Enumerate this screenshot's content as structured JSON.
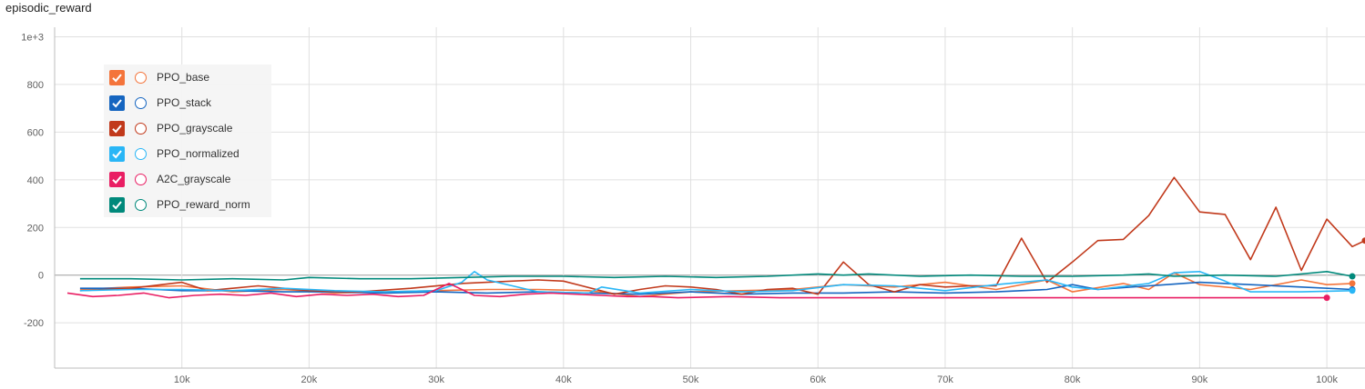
{
  "chart_data": {
    "type": "line",
    "title": "episodic_reward",
    "xlabel": "",
    "ylabel": "",
    "xlim": [
      0,
      103000
    ],
    "ylim": [
      -390,
      1040
    ],
    "x_ticks": [
      {
        "value": 10000,
        "label": "10k"
      },
      {
        "value": 20000,
        "label": "20k"
      },
      {
        "value": 30000,
        "label": "30k"
      },
      {
        "value": 40000,
        "label": "40k"
      },
      {
        "value": 50000,
        "label": "50k"
      },
      {
        "value": 60000,
        "label": "60k"
      },
      {
        "value": 70000,
        "label": "70k"
      },
      {
        "value": 80000,
        "label": "80k"
      },
      {
        "value": 90000,
        "label": "90k"
      },
      {
        "value": 100000,
        "label": "100k"
      }
    ],
    "y_ticks": [
      {
        "value": -200,
        "label": "-200"
      },
      {
        "value": 0,
        "label": "0"
      },
      {
        "value": 200,
        "label": "200"
      },
      {
        "value": 400,
        "label": "400"
      },
      {
        "value": 600,
        "label": "600"
      },
      {
        "value": 800,
        "label": "800"
      },
      {
        "value": 1000,
        "label": "1e+3"
      }
    ],
    "grid": true,
    "legend_position": "top-left",
    "series": [
      {
        "name": "PPO_base",
        "color": "#f4743b",
        "x": [
          2000,
          6000,
          10000,
          14000,
          18000,
          22000,
          26000,
          30000,
          34000,
          38000,
          42000,
          46000,
          50000,
          54000,
          58000,
          62000,
          66000,
          70000,
          74000,
          78000,
          80000,
          84000,
          86000,
          88000,
          90000,
          94000,
          98000,
          100000,
          102000
        ],
        "y": [
          -60,
          -50,
          -45,
          -70,
          -60,
          -75,
          -70,
          -65,
          -60,
          -60,
          -65,
          -90,
          -70,
          -65,
          -60,
          -40,
          -50,
          -30,
          -60,
          -20,
          -70,
          -35,
          -60,
          10,
          -40,
          -60,
          -20,
          -40,
          -35
        ]
      },
      {
        "name": "PPO_stack",
        "color": "#1565c0",
        "x": [
          2000,
          6000,
          10000,
          14000,
          18000,
          22000,
          26000,
          30000,
          34000,
          38000,
          42000,
          46000,
          50000,
          54000,
          58000,
          62000,
          66000,
          70000,
          74000,
          78000,
          80000,
          82000,
          86000,
          90000,
          94000,
          98000,
          102000
        ],
        "y": [
          -55,
          -55,
          -65,
          -65,
          -70,
          -70,
          -75,
          -70,
          -75,
          -70,
          -75,
          -80,
          -70,
          -80,
          -75,
          -75,
          -70,
          -75,
          -70,
          -60,
          -40,
          -60,
          -45,
          -30,
          -40,
          -50,
          -60
        ]
      },
      {
        "name": "PPO_grayscale",
        "color": "#c1391b",
        "x": [
          2000,
          6000,
          10000,
          12000,
          16000,
          20000,
          24000,
          28000,
          32000,
          34000,
          38000,
          40000,
          44000,
          46000,
          48000,
          50000,
          52000,
          54000,
          56000,
          58000,
          60000,
          62000,
          64000,
          66000,
          68000,
          70000,
          72000,
          74000,
          76000,
          78000,
          80000,
          82000,
          84000,
          86000,
          88000,
          90000,
          92000,
          94000,
          96000,
          98000,
          100000,
          102000,
          103000
        ],
        "y": [
          -65,
          -55,
          -30,
          -65,
          -45,
          -65,
          -70,
          -55,
          -35,
          -30,
          -20,
          -25,
          -80,
          -60,
          -45,
          -50,
          -60,
          -80,
          -60,
          -55,
          -80,
          55,
          -40,
          -70,
          -40,
          -50,
          -45,
          -45,
          155,
          -30,
          55,
          145,
          150,
          250,
          410,
          265,
          255,
          65,
          285,
          20,
          235,
          120,
          145
        ]
      },
      {
        "name": "PPO_normalized",
        "color": "#29b6f6",
        "x": [
          2000,
          6000,
          10000,
          14000,
          18000,
          22000,
          26000,
          30000,
          32000,
          33000,
          34000,
          38000,
          42000,
          43000,
          46000,
          50000,
          54000,
          58000,
          62000,
          66000,
          70000,
          74000,
          78000,
          80000,
          82000,
          86000,
          88000,
          90000,
          92000,
          94000,
          98000,
          102000
        ],
        "y": [
          -65,
          -60,
          -60,
          -65,
          -55,
          -65,
          -70,
          -65,
          -30,
          15,
          -20,
          -70,
          -75,
          -50,
          -75,
          -60,
          -70,
          -65,
          -40,
          -45,
          -65,
          -40,
          -20,
          -50,
          -60,
          -35,
          10,
          15,
          -25,
          -70,
          -70,
          -65
        ]
      },
      {
        "name": "A2C_grayscale",
        "color": "#e91e63",
        "x": [
          1000,
          3000,
          5000,
          7000,
          9000,
          11000,
          13000,
          15000,
          17000,
          19000,
          21000,
          23000,
          25000,
          27000,
          29000,
          31000,
          33000,
          35000,
          37000,
          39000,
          41000,
          43000,
          45000,
          47000,
          49000,
          53000,
          57000,
          61000,
          65000,
          70000,
          75000,
          80000,
          85000,
          90000,
          95000,
          100000
        ],
        "y": [
          -75,
          -90,
          -85,
          -75,
          -95,
          -85,
          -80,
          -85,
          -75,
          -90,
          -80,
          -85,
          -80,
          -90,
          -85,
          -35,
          -85,
          -90,
          -80,
          -75,
          -80,
          -85,
          -90,
          -90,
          -95,
          -90,
          -95,
          -95,
          -95,
          -95,
          -95,
          -95,
          -95,
          -95,
          -95,
          -95
        ]
      },
      {
        "name": "PPO_reward_norm",
        "color": "#00897b",
        "x": [
          2000,
          6000,
          10000,
          14000,
          18000,
          20000,
          24000,
          28000,
          32000,
          36000,
          40000,
          44000,
          48000,
          52000,
          56000,
          60000,
          62000,
          64000,
          68000,
          72000,
          76000,
          80000,
          84000,
          86000,
          88000,
          92000,
          96000,
          100000,
          102000
        ],
        "y": [
          -15,
          -15,
          -20,
          -15,
          -20,
          -10,
          -15,
          -15,
          -10,
          -5,
          -5,
          -10,
          -5,
          -10,
          -5,
          5,
          0,
          5,
          -5,
          0,
          -5,
          -5,
          0,
          5,
          -5,
          0,
          -5,
          15,
          -5
        ]
      }
    ]
  },
  "legend": {
    "items": [
      {
        "label": "PPO_base",
        "color": "#f4743b"
      },
      {
        "label": "PPO_stack",
        "color": "#1565c0"
      },
      {
        "label": "PPO_grayscale",
        "color": "#c1391b"
      },
      {
        "label": "PPO_normalized",
        "color": "#29b6f6"
      },
      {
        "label": "A2C_grayscale",
        "color": "#e91e63"
      },
      {
        "label": "PPO_reward_norm",
        "color": "#00897b"
      }
    ]
  }
}
